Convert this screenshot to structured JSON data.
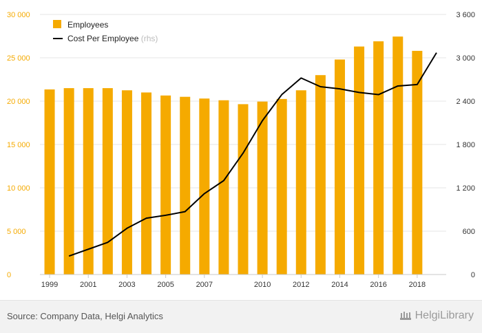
{
  "chart_data": {
    "type": "bar",
    "categories": [
      "1999",
      "2000",
      "2001",
      "2002",
      "2003",
      "2004",
      "2005",
      "2006",
      "2007",
      "2008",
      "2009",
      "2010",
      "2011",
      "2012",
      "2013",
      "2014",
      "2015",
      "2016",
      "2017",
      "2018",
      "2019"
    ],
    "x_tick_labels": [
      "1999",
      "2001",
      "2003",
      "2005",
      "2007",
      "2010",
      "2012",
      "2014",
      "2016",
      "2018"
    ],
    "series": [
      {
        "name": "Employees",
        "type": "bar",
        "axis": "left",
        "color": "#f5aa00",
        "values": [
          21350,
          21500,
          21500,
          21500,
          21250,
          21000,
          20650,
          20500,
          20300,
          20100,
          19650,
          19950,
          20250,
          21250,
          23000,
          24800,
          26300,
          26900,
          27450,
          25800,
          null
        ]
      },
      {
        "name": "Cost Per Employee",
        "type": "line",
        "axis": "right",
        "color": "#000000",
        "values": [
          null,
          255,
          350,
          445,
          640,
          780,
          820,
          870,
          1120,
          1300,
          1680,
          2130,
          2490,
          2720,
          2600,
          2570,
          2520,
          2490,
          2610,
          2630,
          3070
        ]
      }
    ],
    "legend": [
      {
        "label": "Employees",
        "marker": "square"
      },
      {
        "label": "Cost Per Employee",
        "suffix": "(rhs)",
        "marker": "line"
      }
    ],
    "y_left": {
      "ylim": [
        0,
        30000
      ],
      "ticks": [
        "0",
        "5 000",
        "10 000",
        "15 000",
        "20 000",
        "25 000",
        "30 000"
      ]
    },
    "y_right": {
      "ylim": [
        0,
        3600
      ],
      "ticks": [
        "0",
        "600",
        "1 200",
        "1 800",
        "2 400",
        "3 000",
        "3 600"
      ]
    },
    "tick_color": "#f5aa00",
    "grid": true,
    "legend_position": "top-left"
  },
  "footer": {
    "source": "Source: Company Data, Helgi Analytics",
    "brand": "HelgiLibrary"
  }
}
